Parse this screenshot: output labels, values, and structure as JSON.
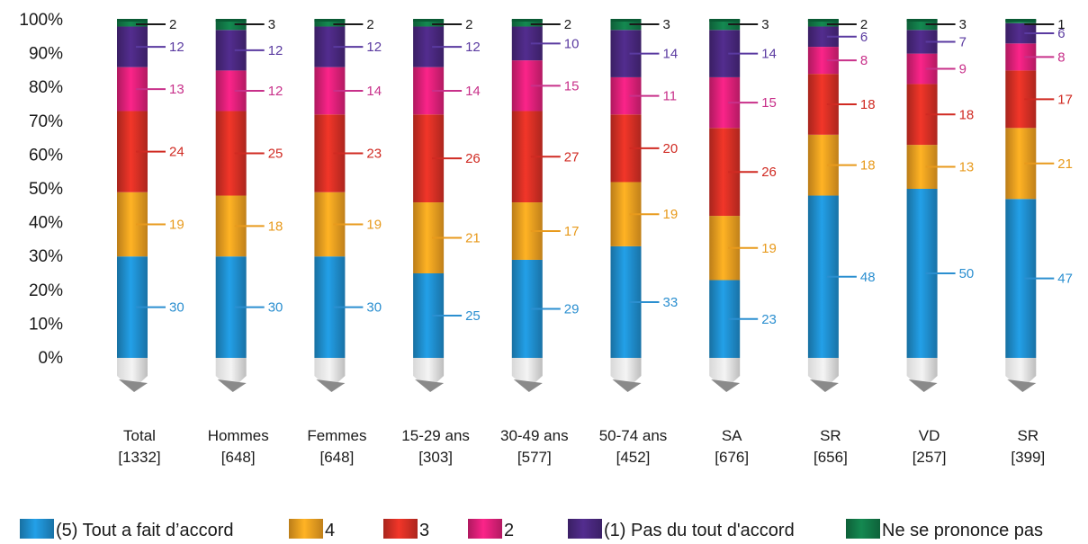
{
  "chart_data": {
    "type": "bar",
    "stacked": true,
    "percent_scale": true,
    "ylim": [
      0,
      100
    ],
    "y_ticks": [
      "0%",
      "10%",
      "20%",
      "30%",
      "40%",
      "50%",
      "60%",
      "70%",
      "80%",
      "90%",
      "100%"
    ],
    "legend_placement": "bottom",
    "categories": [
      {
        "name": "Total",
        "n": "[1332]"
      },
      {
        "name": "Hommes",
        "n": "[648]"
      },
      {
        "name": "Femmes",
        "n": "[648]"
      },
      {
        "name": "15-29 ans",
        "n": "[303]"
      },
      {
        "name": "30-49 ans",
        "n": "[577]"
      },
      {
        "name": "50-74 ans",
        "n": "[452]"
      },
      {
        "name": "SA",
        "n": "[676]"
      },
      {
        "name": "SR",
        "n": "[656]"
      },
      {
        "name": "VD",
        "n": "[257]"
      },
      {
        "name": "SR",
        "n": "[399]"
      }
    ],
    "series": [
      {
        "name": "(5) Tout a fait d’accord",
        "color": "#1f8fcf",
        "label_color": "#2b8fd0",
        "values": [
          30,
          30,
          30,
          25,
          29,
          33,
          23,
          48,
          50,
          47
        ]
      },
      {
        "name": "4",
        "color": "#f0a020",
        "label_color": "#e89a1c",
        "values": [
          19,
          18,
          19,
          21,
          17,
          19,
          19,
          18,
          13,
          21
        ]
      },
      {
        "name": "3",
        "color": "#d83025",
        "label_color": "#d02a22",
        "values": [
          24,
          25,
          23,
          26,
          27,
          20,
          26,
          18,
          18,
          17
        ]
      },
      {
        "name": "2",
        "color": "#e0207a",
        "label_color": "#c8308a",
        "values": [
          13,
          12,
          14,
          14,
          15,
          11,
          15,
          8,
          9,
          8
        ]
      },
      {
        "name": "(1) Pas du tout d'accord",
        "color": "#4a2880",
        "label_color": "#5a3aa0",
        "values": [
          12,
          12,
          12,
          12,
          10,
          14,
          14,
          6,
          7,
          6
        ]
      },
      {
        "name": "Ne se prononce pas",
        "color": "#127a48",
        "label_color": "#1a1a1a",
        "values": [
          2,
          3,
          2,
          2,
          2,
          3,
          3,
          2,
          3,
          1
        ]
      }
    ]
  }
}
